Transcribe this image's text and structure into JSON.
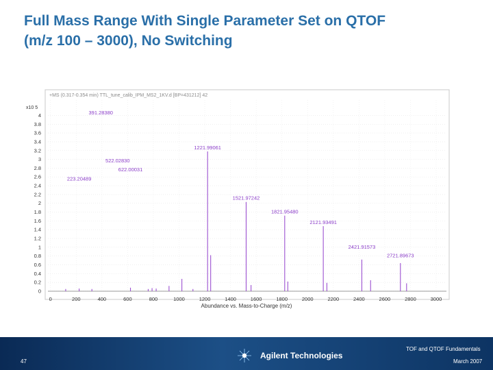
{
  "slide": {
    "title_line1": "Full Mass Range With Single Parameter Set on QTOF",
    "title_line2": "(m/z 100 – 3000), No Switching",
    "page_number": "47",
    "footer_title": "TOF and QTOF Fundamentals",
    "footer_date": "March 2007",
    "brand": "Agilent Technologies"
  },
  "colors": {
    "title": "#2a6fa8",
    "peak": "#9b4fd0",
    "label": "#8a3cc8",
    "footer": "#123f72"
  },
  "chart_data": {
    "type": "bar",
    "title": "+MS (0.317-0.354 min) TTL_tune_calib_IPM_MS2_1KV.d [BP=431212] 42",
    "xlabel": "Abundance vs. Mass-to-Charge (m/z)",
    "ylabel": "",
    "y_exponent_label": "x10 5",
    "xlim": [
      -20,
      3080
    ],
    "ylim": [
      0,
      4.35
    ],
    "x_ticks": [
      "0",
      "200",
      "400",
      "600",
      "800",
      "1000",
      "1200",
      "1400",
      "1600",
      "1800",
      "2000",
      "2200",
      "2400",
      "2600",
      "2800",
      "3000"
    ],
    "y_ticks": [
      "0",
      "0.2",
      "0.4",
      "0.6",
      "0.8",
      "1",
      "1.2",
      "1.4",
      "1.6",
      "1.8",
      "2",
      "2.2",
      "2.4",
      "2.6",
      "2.8",
      "3",
      "3.2",
      "3.4",
      "3.6",
      "3.8",
      "4"
    ],
    "peaks": [
      {
        "mz": 118.1,
        "abundance": 0.05
      },
      {
        "mz": 223.0,
        "abundance": 0.06
      },
      {
        "mz": 322.0,
        "abundance": 0.05
      },
      {
        "mz": 622.0,
        "abundance": 0.08
      },
      {
        "mz": 760.0,
        "abundance": 0.05
      },
      {
        "mz": 790.0,
        "abundance": 0.07
      },
      {
        "mz": 822.0,
        "abundance": 0.06
      },
      {
        "mz": 922.0,
        "abundance": 0.12
      },
      {
        "mz": 1022.0,
        "abundance": 0.28
      },
      {
        "mz": 1108.0,
        "abundance": 0.05
      },
      {
        "mz": 1221.99,
        "abundance": 3.18
      },
      {
        "mz": 1246.0,
        "abundance": 0.82
      },
      {
        "mz": 1521.97,
        "abundance": 2.03
      },
      {
        "mz": 1560.0,
        "abundance": 0.14
      },
      {
        "mz": 1821.95,
        "abundance": 1.72
      },
      {
        "mz": 1846.0,
        "abundance": 0.22
      },
      {
        "mz": 2121.93,
        "abundance": 1.48
      },
      {
        "mz": 2150.0,
        "abundance": 0.19
      },
      {
        "mz": 2421.92,
        "abundance": 0.72
      },
      {
        "mz": 2490.0,
        "abundance": 0.25
      },
      {
        "mz": 2721.89,
        "abundance": 0.64
      },
      {
        "mz": 2770.0,
        "abundance": 0.18
      }
    ],
    "annotations": [
      {
        "text": "391.28380",
        "mz": 391.28,
        "y": 4.02
      },
      {
        "text": "1221.99061",
        "mz": 1221.99,
        "y": 3.23
      },
      {
        "text": "522.02830",
        "mz": 522.03,
        "y": 2.93
      },
      {
        "text": "622.00031",
        "mz": 622.0,
        "y": 2.73
      },
      {
        "text": "223.20489",
        "mz": 223.2,
        "y": 2.52
      },
      {
        "text": "1521.97242",
        "mz": 1521.97,
        "y": 2.08
      },
      {
        "text": "1821.95480",
        "mz": 1821.95,
        "y": 1.77
      },
      {
        "text": "2121.93491",
        "mz": 2121.93,
        "y": 1.53
      },
      {
        "text": "2421.91573",
        "mz": 2421.92,
        "y": 0.97
      },
      {
        "text": "2721.89673",
        "mz": 2721.9,
        "y": 0.77
      }
    ]
  }
}
